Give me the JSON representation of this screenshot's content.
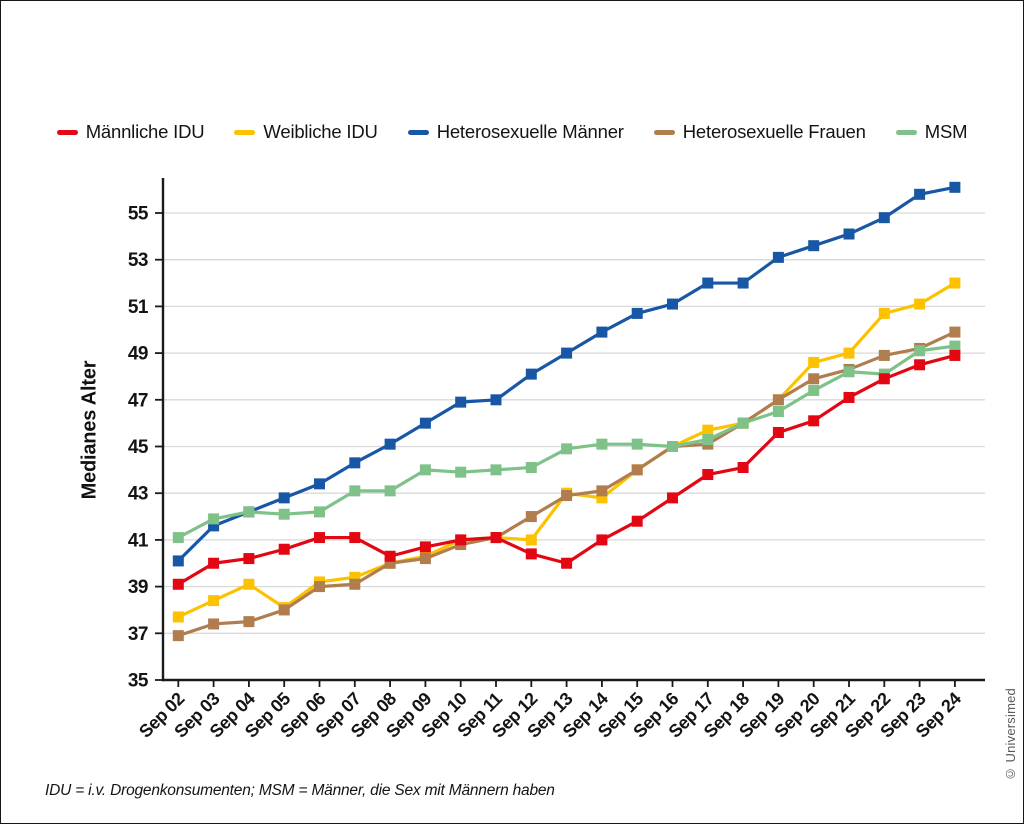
{
  "page": {
    "footnote": "IDU = i.v. Drogenkonsumenten; MSM = Männer, die Sex mit Männern haben",
    "credit": "© Universimed"
  },
  "axis": {
    "y_title": "Medianes Alter"
  },
  "colors": {
    "grid": "#d9d9d9",
    "axis": "#1a1a1a",
    "tick_text": "#141414"
  },
  "chart_data": {
    "type": "line",
    "title": "",
    "xlabel": "",
    "ylabel": "Medianes Alter",
    "grid": true,
    "legend_position": "top",
    "marker": "square",
    "ylim": [
      35,
      56.5
    ],
    "yticks": [
      35,
      37,
      39,
      41,
      43,
      45,
      47,
      49,
      51,
      53,
      55
    ],
    "categories": [
      "Sep 02",
      "Sep 03",
      "Sep 04",
      "Sep 05",
      "Sep 06",
      "Sep 07",
      "Sep 08",
      "Sep 09",
      "Sep 10",
      "Sep 11",
      "Sep 12",
      "Sep 13",
      "Sep 14",
      "Sep 15",
      "Sep 16",
      "Sep 17",
      "Sep 18",
      "Sep 19",
      "Sep 20",
      "Sep 21",
      "Sep 22",
      "Sep 23",
      "Sep 24"
    ],
    "series": [
      {
        "name": "Männliche IDU",
        "color": "#e30613",
        "values": [
          39.1,
          40.0,
          40.2,
          40.6,
          41.1,
          41.1,
          40.3,
          40.7,
          41.0,
          41.1,
          40.4,
          40.0,
          41.0,
          41.8,
          42.8,
          43.8,
          44.1,
          45.6,
          46.1,
          47.1,
          47.9,
          48.5,
          48.9
        ]
      },
      {
        "name": "Weibliche IDU",
        "color": "#fcc200",
        "values": [
          37.7,
          38.4,
          39.1,
          38.1,
          39.2,
          39.4,
          40.0,
          40.3,
          41.0,
          41.1,
          41.0,
          43.0,
          42.8,
          44.0,
          45.0,
          45.7,
          46.0,
          47.0,
          48.6,
          49.0,
          50.7,
          51.1,
          52.0
        ]
      },
      {
        "name": "Heterosexuelle Männer",
        "color": "#1757a5",
        "values": [
          40.1,
          41.6,
          42.2,
          42.8,
          43.4,
          44.3,
          45.1,
          46.0,
          46.9,
          47.0,
          48.1,
          49.0,
          49.9,
          50.7,
          51.1,
          52.0,
          52.0,
          53.1,
          53.6,
          54.1,
          54.8,
          55.8,
          56.1
        ]
      },
      {
        "name": "Heterosexuelle Frauen",
        "color": "#b07d4f",
        "values": [
          36.9,
          37.4,
          37.5,
          38.0,
          39.0,
          39.1,
          40.0,
          40.2,
          40.8,
          41.1,
          42.0,
          42.9,
          43.1,
          44.0,
          45.0,
          45.1,
          46.0,
          47.0,
          47.9,
          48.3,
          48.9,
          49.2,
          49.9
        ]
      },
      {
        "name": "MSM",
        "color": "#7ec289",
        "values": [
          41.1,
          41.9,
          42.2,
          42.1,
          42.2,
          43.1,
          43.1,
          44.0,
          43.9,
          44.0,
          44.1,
          44.9,
          45.1,
          45.1,
          45.0,
          45.3,
          46.0,
          46.5,
          47.4,
          48.2,
          48.1,
          49.1,
          49.3
        ]
      }
    ]
  }
}
